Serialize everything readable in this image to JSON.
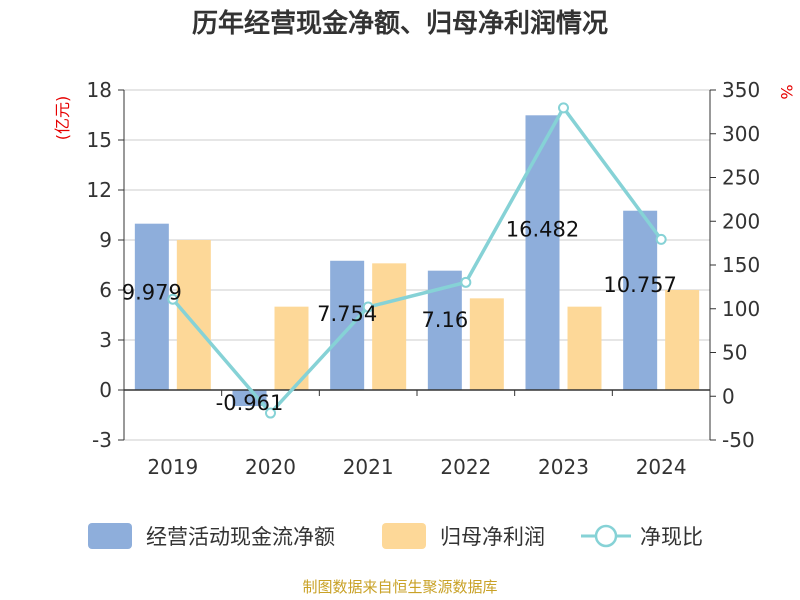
{
  "chart_data": {
    "type": "bar",
    "title": "历年经营现金净额、归母净利润情况",
    "categories": [
      "2019",
      "2020",
      "2021",
      "2022",
      "2023",
      "2024"
    ],
    "series": [
      {
        "name": "经营活动现金流净额",
        "type": "bar",
        "axis": "left",
        "color": "#8eaedb",
        "values": [
          9.979,
          -0.961,
          7.754,
          7.16,
          16.482,
          10.757
        ],
        "labels": [
          "9.979",
          "-0.961",
          "7.754",
          "7.16",
          "16.482",
          "10.757"
        ]
      },
      {
        "name": "归母净利润",
        "type": "bar",
        "axis": "left",
        "color": "#fdd898",
        "values": [
          9.0,
          5.0,
          7.6,
          5.5,
          5.0,
          6.0
        ]
      },
      {
        "name": "净现比",
        "type": "line",
        "axis": "right",
        "color": "#86d2d6",
        "values": [
          110.9,
          -19.2,
          102.0,
          130.2,
          329.6,
          179.3
        ]
      }
    ],
    "y_left": {
      "unit": "(亿元)",
      "ylim": [
        -3,
        18
      ],
      "ticks": [
        "-3",
        "0",
        "3",
        "6",
        "9",
        "12",
        "15",
        "18"
      ]
    },
    "y_right": {
      "unit": "%",
      "ylim": [
        -50,
        350
      ],
      "ticks": [
        "-50",
        "0",
        "50",
        "100",
        "150",
        "200",
        "250",
        "300",
        "350"
      ]
    },
    "grid": true,
    "legend_position": "bottom"
  },
  "source": "制图数据来自恒生聚源数据库"
}
